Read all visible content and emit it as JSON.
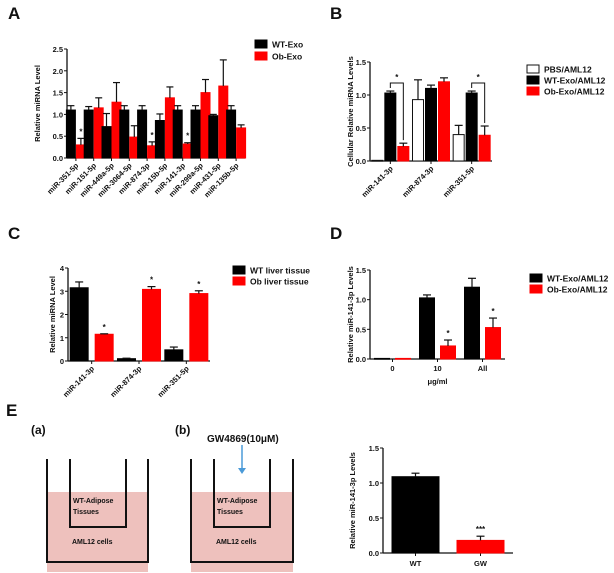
{
  "panel_labels": {
    "A": "A",
    "B": "B",
    "C": "C",
    "D": "D",
    "E": "E"
  },
  "chart_data": [
    {
      "id": "A",
      "type": "bar",
      "title": "",
      "xlabel": "",
      "ylabel": "Relative miRNA Level",
      "ylim": [
        0,
        2.5
      ],
      "yticks": [
        "0.0",
        "0.5",
        "1.0",
        "1.5",
        "2.0",
        "2.5"
      ],
      "ytick_values": [
        0,
        0.5,
        1.0,
        1.5,
        2.0,
        2.5
      ],
      "categories": [
        "miR-351-5p",
        "miR-151-5p",
        "miR-449a-5p",
        "miR-3064-5p",
        "miR-874-3p",
        "miR-15b-5p",
        "miR-141-3p",
        "miR-299a-5p",
        "miR-431-5p",
        "miR-135b-5p"
      ],
      "series": [
        {
          "name": "WT-Exo",
          "color": "#000000",
          "values": [
            1.1,
            1.1,
            0.72,
            1.1,
            1.1,
            0.86,
            1.1,
            1.1,
            0.97,
            1.1
          ],
          "errors": [
            0.1,
            0.08,
            0.3,
            0.1,
            0.1,
            0.15,
            0.1,
            0.1,
            0.03,
            0.1
          ]
        },
        {
          "name": "Ob-Exo",
          "color": "#ff0000",
          "values": [
            0.3,
            1.15,
            1.28,
            0.48,
            0.28,
            1.38,
            0.32,
            1.5,
            1.65,
            0.69
          ],
          "errors": [
            0.15,
            0.23,
            0.45,
            0.26,
            0.09,
            0.25,
            0.03,
            0.3,
            0.6,
            0.07
          ]
        }
      ],
      "significance": [
        {
          "category": 0,
          "label": "*"
        },
        {
          "category": 4,
          "label": "*"
        },
        {
          "category": 6,
          "label": "*"
        }
      ],
      "legend": "right"
    },
    {
      "id": "B",
      "type": "bar",
      "ylabel": "Cellular Relative miRNA Levels",
      "ylim": [
        0,
        1.5
      ],
      "yticks": [
        "0.0",
        "0.5",
        "1.0",
        "1.5"
      ],
      "ytick_values": [
        0,
        0.5,
        1.0,
        1.5
      ],
      "categories": [
        "miR-141-3p",
        "miR-874-3p",
        "miR-351-5p"
      ],
      "series": [
        {
          "name": "PBS/AML12",
          "color": "#ffffff",
          "values": [
            0.01,
            0.93,
            0.4
          ],
          "errors": [
            0.0,
            0.3,
            0.14
          ]
        },
        {
          "name": "WT-Exo/AML12",
          "color": "#000000",
          "values": [
            1.03,
            1.1,
            1.03
          ],
          "errors": [
            0.03,
            0.05,
            0.03
          ]
        },
        {
          "name": "Ob-Exo/AML12",
          "color": "#ff0000",
          "values": [
            0.22,
            1.2,
            0.39
          ],
          "errors": [
            0.05,
            0.06,
            0.14
          ]
        }
      ],
      "brackets": [
        {
          "category": 0,
          "label": "*"
        },
        {
          "category": 2,
          "label": "*"
        }
      ],
      "legend": "right"
    },
    {
      "id": "C",
      "type": "bar",
      "ylabel": "Relative miRNA Level",
      "ylim": [
        0,
        4
      ],
      "yticks": [
        "0",
        "1",
        "2",
        "3",
        "4"
      ],
      "ytick_values": [
        0,
        1,
        2,
        3,
        4
      ],
      "categories": [
        "miR-141-3p",
        "miR-874-3p",
        "miR-351-5p"
      ],
      "series": [
        {
          "name": "WT liver tissue",
          "color": "#000000",
          "values": [
            3.15,
            0.1,
            0.48
          ],
          "errors": [
            0.25,
            0.02,
            0.12
          ]
        },
        {
          "name": "Ob liver tissue",
          "color": "#ff0000",
          "values": [
            1.15,
            3.08,
            2.9
          ],
          "errors": [
            0.02,
            0.12,
            0.12
          ]
        }
      ],
      "significance": [
        {
          "category": 0,
          "label": "*"
        },
        {
          "category": 1,
          "label": "*"
        },
        {
          "category": 2,
          "label": "*"
        }
      ],
      "legend": "right"
    },
    {
      "id": "D",
      "type": "bar",
      "ylabel": "Relative miR-141-3p Levels",
      "xlabel": "μg/ml",
      "ylim": [
        0,
        1.5
      ],
      "yticks": [
        "0.0",
        "0.5",
        "1.0",
        "1.5"
      ],
      "ytick_values": [
        0,
        0.5,
        1.0,
        1.5
      ],
      "categories": [
        "0",
        "10",
        "All"
      ],
      "series": [
        {
          "name": "WT-Exo/AML12",
          "color": "#000000",
          "values": [
            0.01,
            1.03,
            1.21
          ],
          "errors": [
            0,
            0.05,
            0.15
          ]
        },
        {
          "name": "Ob-Exo/AML12",
          "color": "#ff0000",
          "values": [
            0.01,
            0.22,
            0.53
          ],
          "errors": [
            0,
            0.1,
            0.16
          ]
        }
      ],
      "significance": [
        {
          "category": 1,
          "label": "*"
        },
        {
          "category": 2,
          "label": "*"
        }
      ],
      "legend": "right"
    },
    {
      "id": "E",
      "type": "bar",
      "ylabel": "Relative miR-141-3p Levels",
      "ylim": [
        0,
        1.5
      ],
      "yticks": [
        "0.0",
        "0.5",
        "1.0",
        "1.5"
      ],
      "ytick_values": [
        0,
        0.5,
        1.0,
        1.5
      ],
      "categories": [
        "WT",
        "GW"
      ],
      "series": [
        {
          "name": "",
          "colors": [
            "#000000",
            "#ff0000"
          ],
          "values": [
            1.09,
            0.18
          ],
          "errors": [
            0.05,
            0.06
          ]
        }
      ],
      "significance": [
        {
          "category": 1,
          "label": "***"
        }
      ]
    }
  ],
  "diagram": {
    "a_label": "(a)",
    "b_label": "(b)",
    "inhibitor_label": "GW4869(10μM)",
    "insert_label_line1": "WT-Adipose",
    "insert_label_line2": "Tissues",
    "well_label": "AML12 cells",
    "medium_color": "#eec1bd",
    "arrow_color": "#4a9ad8"
  }
}
